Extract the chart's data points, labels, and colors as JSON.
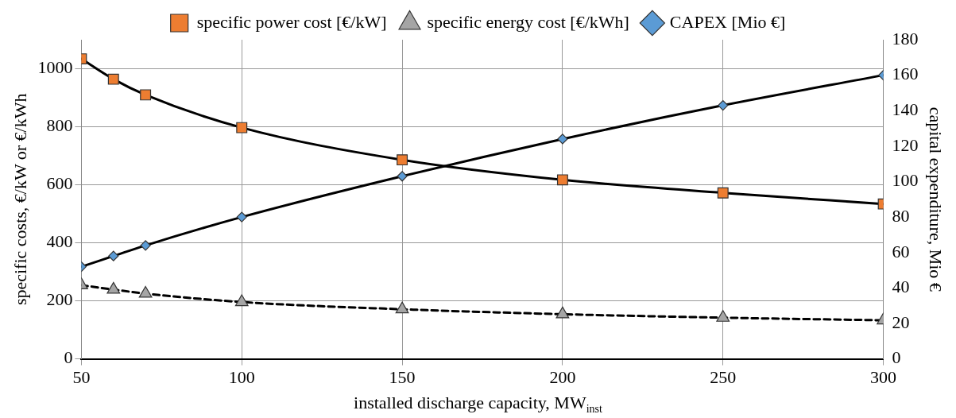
{
  "chart_data": {
    "type": "line",
    "xlabel": "installed discharge capacity, MW$_{inst}$",
    "ylabel": "specific costs, €/kW or €/kWh",
    "y2label": "capital expenditure, Mio €",
    "x": [
      50,
      60,
      70,
      100,
      150,
      200,
      250,
      300
    ],
    "xlim": [
      50,
      300
    ],
    "xticks": [
      50,
      100,
      150,
      200,
      250,
      300
    ],
    "ylim": [
      0,
      1100
    ],
    "yticks": [
      0,
      200,
      400,
      600,
      800,
      1000
    ],
    "y2lim": [
      0,
      180
    ],
    "y2ticks": [
      0,
      20,
      40,
      60,
      80,
      100,
      120,
      140,
      160,
      180
    ],
    "grid": true,
    "legend": "top",
    "line_style": "solid",
    "series": [
      {
        "name": "specific power cost [€/kW]",
        "color": "#ed7d31",
        "marker": "square",
        "values": [
          1034,
          964,
          910,
          797,
          686,
          617,
          572,
          534
        ]
      },
      {
        "name": "specific energy cost [€/kWh]",
        "color": "#a5a5a5",
        "marker": "triangle",
        "line_style": "dashed",
        "values": [
          254,
          239,
          225,
          196,
          171,
          154,
          142,
          133
        ]
      },
      {
        "name": "CAPEX [Mio €]",
        "color": "#5b9bd5",
        "marker": "diamond",
        "axis": "y2",
        "values": [
          52,
          58,
          64,
          80,
          103,
          124,
          143,
          160
        ]
      }
    ]
  }
}
